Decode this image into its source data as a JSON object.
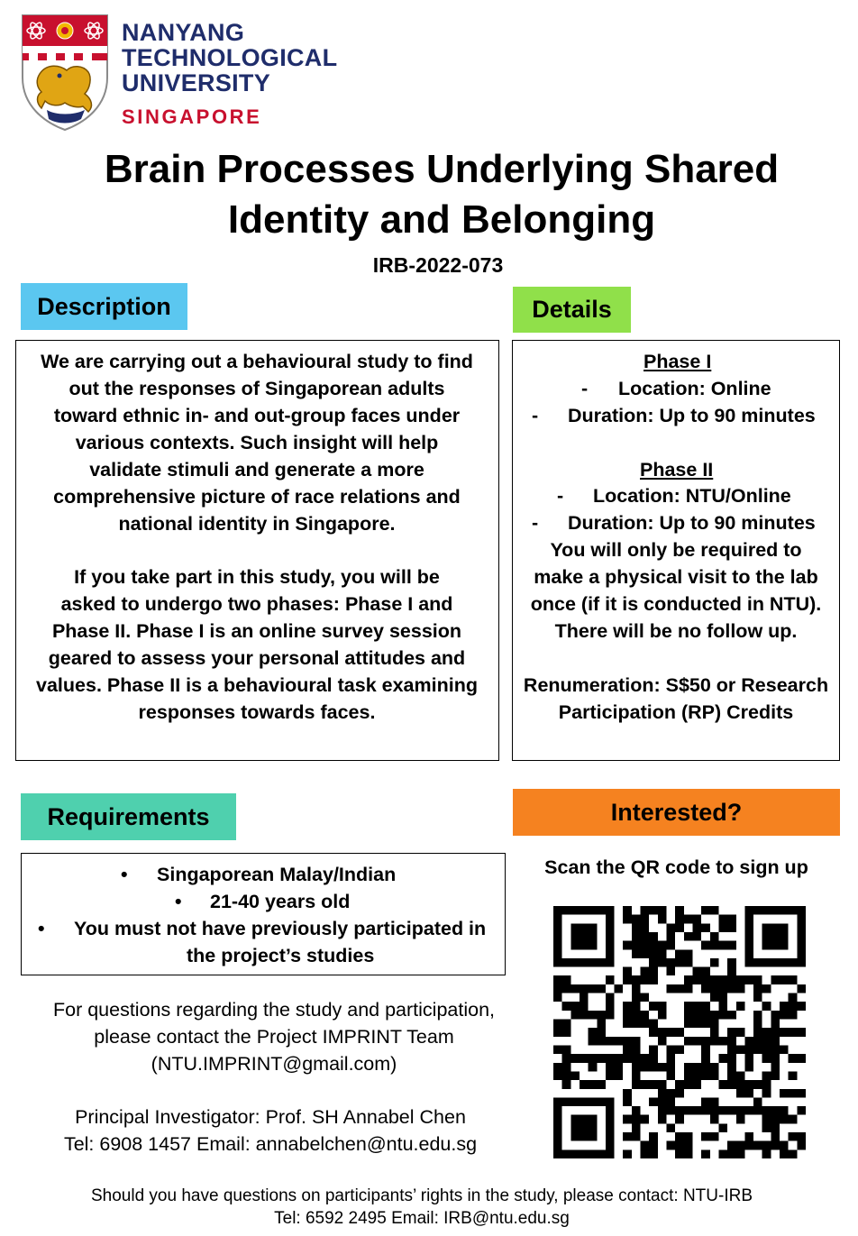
{
  "logo": {
    "line1": "NANYANG",
    "line2": "TECHNOLOGICAL",
    "line3": "UNIVERSITY",
    "line4": "SINGAPORE"
  },
  "title": {
    "line1": "Brain Processes Underlying Shared",
    "line2": "Identity and Belonging",
    "irb": "IRB-2022-073"
  },
  "description": {
    "header": "Description",
    "p1": [
      "We are carrying out a behavioural study to find",
      "out the responses of Singaporean adults",
      "toward ethnic in- and out-group faces under",
      "various contexts. Such insight will help",
      "validate stimuli and generate a more",
      "comprehensive picture of race relations and",
      "national identity in Singapore."
    ],
    "p2": [
      "If you take part in this study, you will be",
      "asked to undergo two phases: Phase I and",
      "Phase II. Phase I is an online survey session",
      "geared to assess your personal attitudes and",
      "values. Phase II is a behavioural task examining",
      "responses towards faces."
    ]
  },
  "details": {
    "header": "Details",
    "phase1_title": "Phase I",
    "phase1_location": "Location: Online",
    "phase1_duration": "Duration: Up to 90 minutes",
    "phase2_title": "Phase II",
    "phase2_location": "Location: NTU/Online",
    "phase2_duration": "Duration: Up to 90 minutes",
    "note": [
      "You will only be required to",
      "make a physical visit to the lab",
      "once (if it is conducted in NTU).",
      "There will be no follow up."
    ],
    "renum1": "Renumeration: S$50 or Research",
    "renum2": "Participation (RP) Credits",
    "dash": "-"
  },
  "requirements": {
    "header": "Requirements",
    "bullet": "•",
    "item1": "Singaporean Malay/Indian",
    "item2": "21-40 years old",
    "item3_line1": "You must not have previously participated in",
    "item3_line2": "the project’s studies"
  },
  "contact": {
    "line1": "For questions regarding the study and participation,",
    "line2": "please contact the Project IMPRINT Team",
    "line3": "(NTU.IMPRINT@gmail.com)",
    "pi": "Principal Investigator: Prof. SH Annabel Chen",
    "tel": "Tel: 6908 1457 Email: annabelchen@ntu.edu.sg"
  },
  "interested": {
    "header": "Interested?",
    "scan": "Scan the QR code to sign up"
  },
  "footer": {
    "line1": "Should you have questions on participants’ rights in the study, please contact: NTU-IRB",
    "line2": "Tel: 6592 2495 Email: IRB@ntu.edu.sg"
  }
}
